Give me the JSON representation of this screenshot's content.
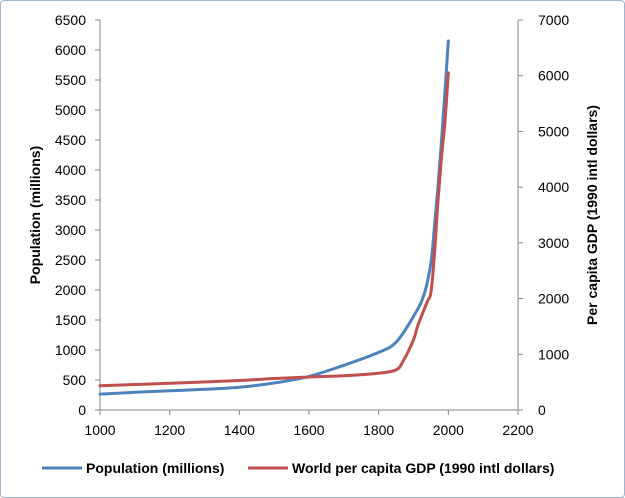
{
  "chart_data": {
    "type": "line",
    "xlim": [
      1000,
      2200
    ],
    "x_ticks": [
      1000,
      1200,
      1400,
      1600,
      1800,
      2000,
      2200
    ],
    "y_left": {
      "label": "Population (millions)",
      "ylim": [
        0,
        6500
      ],
      "ticks": [
        0,
        500,
        1000,
        1500,
        2000,
        2500,
        3000,
        3500,
        4000,
        4500,
        5000,
        5500,
        6000,
        6500
      ]
    },
    "y_right": {
      "label": "Per capita GDP (1990 intl dollars)",
      "ylim": [
        0,
        7000
      ],
      "ticks": [
        0,
        1000,
        2000,
        3000,
        4000,
        5000,
        6000,
        7000
      ]
    },
    "grid": false,
    "legend_position": "bottom",
    "series": [
      {
        "name": "Population (millions)",
        "axis": "left",
        "color": "#4f81bd",
        "points": [
          [
            1000,
            265
          ],
          [
            1100,
            295
          ],
          [
            1200,
            320
          ],
          [
            1300,
            345
          ],
          [
            1400,
            380
          ],
          [
            1500,
            450
          ],
          [
            1600,
            560
          ],
          [
            1700,
            745
          ],
          [
            1800,
            960
          ],
          [
            1850,
            1130
          ],
          [
            1900,
            1560
          ],
          [
            1930,
            1920
          ],
          [
            1950,
            2450
          ],
          [
            1960,
            3050
          ],
          [
            1970,
            3700
          ],
          [
            1980,
            4450
          ],
          [
            1990,
            5280
          ],
          [
            2000,
            6150
          ]
        ]
      },
      {
        "name": "World per capita GDP (1990 intl dollars)",
        "axis": "right",
        "color": "#c0504d",
        "points": [
          [
            1000,
            436
          ],
          [
            1200,
            480
          ],
          [
            1400,
            530
          ],
          [
            1500,
            565
          ],
          [
            1600,
            593
          ],
          [
            1700,
            615
          ],
          [
            1800,
            660
          ],
          [
            1850,
            720
          ],
          [
            1870,
            875
          ],
          [
            1900,
            1260
          ],
          [
            1913,
            1525
          ],
          [
            1940,
            1950
          ],
          [
            1950,
            2110
          ],
          [
            1960,
            2780
          ],
          [
            1970,
            3730
          ],
          [
            1980,
            4510
          ],
          [
            1990,
            5150
          ],
          [
            2000,
            6050
          ]
        ]
      }
    ]
  }
}
